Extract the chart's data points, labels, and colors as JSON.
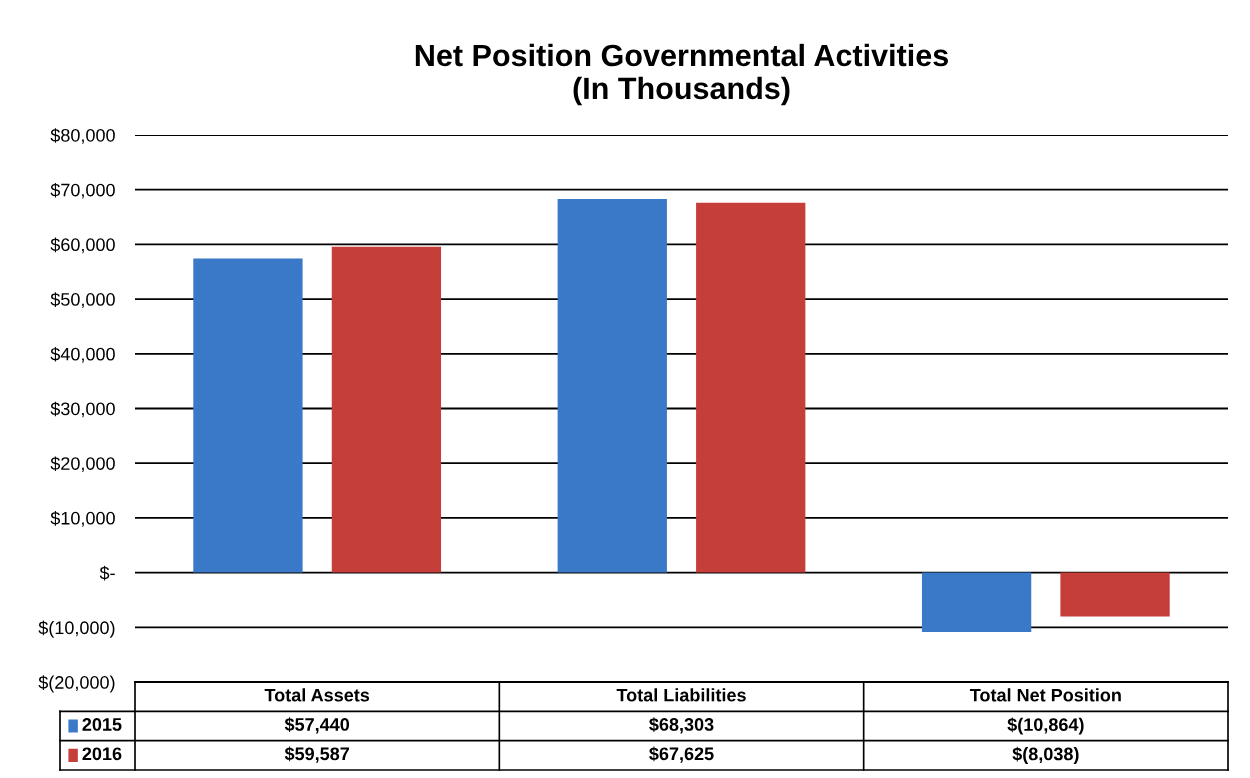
{
  "chart_data": {
    "type": "bar",
    "title": "Net Position Governmental Activities\n(In Thousands)",
    "categories": [
      "Total Assets",
      "Total Liabilities",
      "Total Net Position"
    ],
    "series": [
      {
        "name": "2015",
        "color": "#3a78c8",
        "values": [
          57440,
          68303,
          -10864
        ],
        "value_labels": [
          "$57,440",
          "$68,303",
          "$(10,864)"
        ]
      },
      {
        "name": "2016",
        "color": "#c63e3a",
        "values": [
          59587,
          67625,
          -8038
        ],
        "value_labels": [
          "$59,587",
          "$67,625",
          "$(8,038)"
        ]
      }
    ],
    "ylim": [
      -20000,
      80000
    ],
    "yticks": [
      {
        "value": -20000,
        "label": "$(20,000)"
      },
      {
        "value": -10000,
        "label": "$(10,000)"
      },
      {
        "value": 0,
        "label": "$-"
      },
      {
        "value": 10000,
        "label": "$10,000"
      },
      {
        "value": 20000,
        "label": "$20,000"
      },
      {
        "value": 30000,
        "label": "$30,000"
      },
      {
        "value": 40000,
        "label": "$40,000"
      },
      {
        "value": 50000,
        "label": "$50,000"
      },
      {
        "value": 60000,
        "label": "$60,000"
      },
      {
        "value": 70000,
        "label": "$70,000"
      },
      {
        "value": 80000,
        "label": "$80,000"
      }
    ],
    "grid": "y",
    "legend": "bottom"
  }
}
